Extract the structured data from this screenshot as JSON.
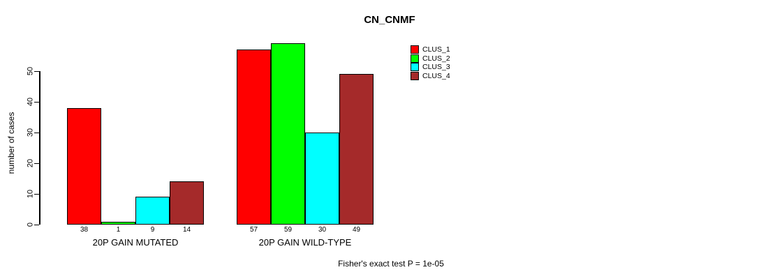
{
  "chart_data": {
    "type": "bar",
    "title": "CN_CNMF",
    "ylabel": "number of cases",
    "xlabel": "",
    "ylim": [
      0,
      59
    ],
    "yticks": [
      0,
      10,
      20,
      30,
      40,
      50
    ],
    "grid": false,
    "legend_position": "top-right",
    "categories": [
      "20P GAIN MUTATED",
      "20P GAIN WILD-TYPE"
    ],
    "series": [
      {
        "name": "CLUS_1",
        "color": "#ff0000",
        "values": [
          38,
          57
        ]
      },
      {
        "name": "CLUS_2",
        "color": "#00ff00",
        "values": [
          1,
          59
        ]
      },
      {
        "name": "CLUS_3",
        "color": "#00ffff",
        "values": [
          9,
          30
        ]
      },
      {
        "name": "CLUS_4",
        "color": "#a52a2a",
        "values": [
          14,
          49
        ]
      }
    ],
    "annotation": "Fisher's exact test P = 1e-05"
  }
}
